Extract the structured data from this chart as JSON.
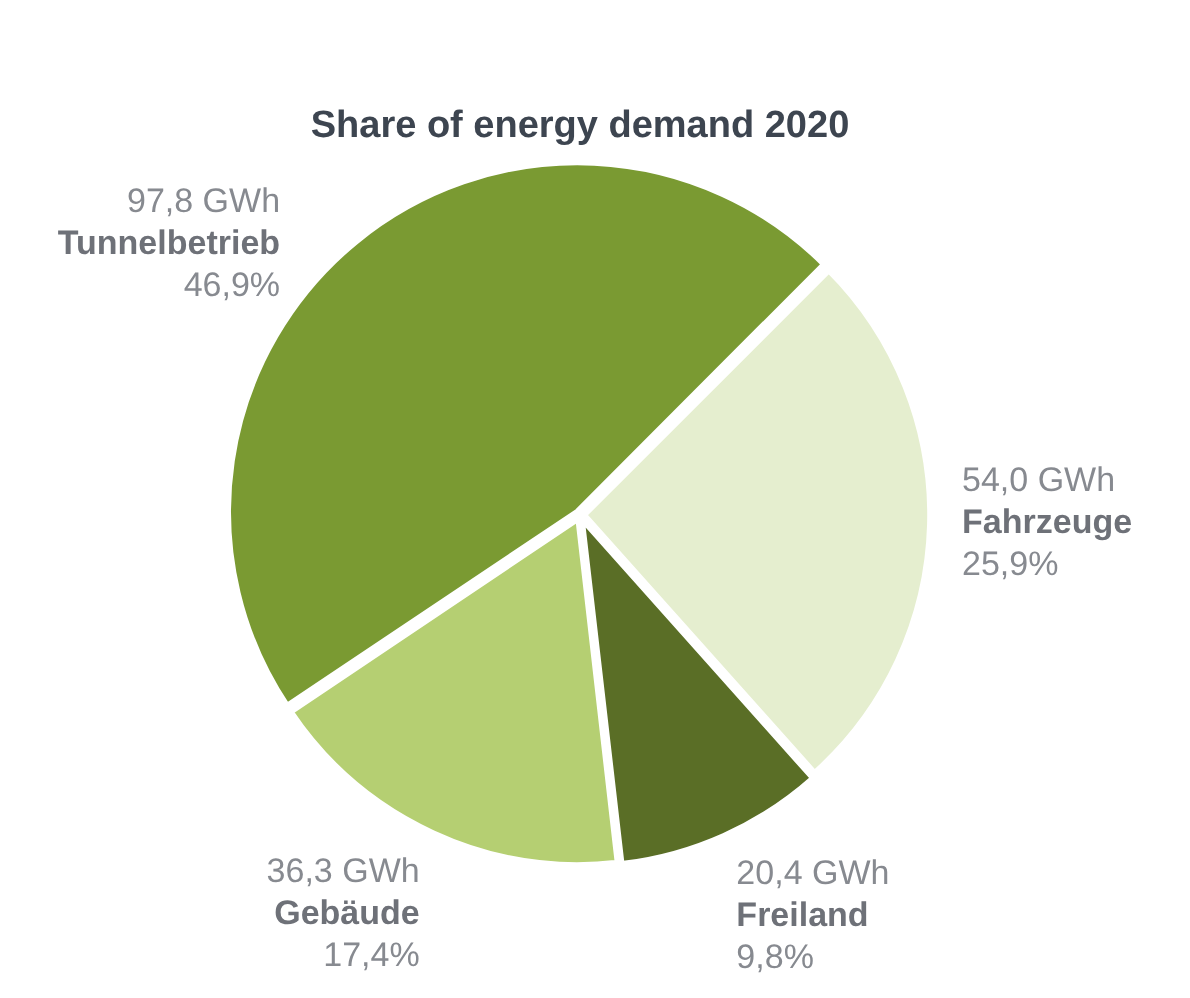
{
  "chart_data": {
    "type": "pie",
    "title": "Share of energy demand 2020",
    "categories": [
      "Tunnelbetrieb",
      "Fahrzeuge",
      "Freiland",
      "Gebäude"
    ],
    "values": [
      97.8,
      54.0,
      20.4,
      36.3
    ],
    "colors": [
      "#7a9a32",
      "#e5eecf",
      "#5a6e26",
      "#b5cf72"
    ],
    "value_labels": [
      "97,8 GWh",
      "54,0 GWh",
      "20,4 GWh",
      "36,3 GWh"
    ],
    "annotations": [
      "46,9%",
      "25,9%",
      "9,8%",
      "17,4%"
    ],
    "legend": false
  }
}
